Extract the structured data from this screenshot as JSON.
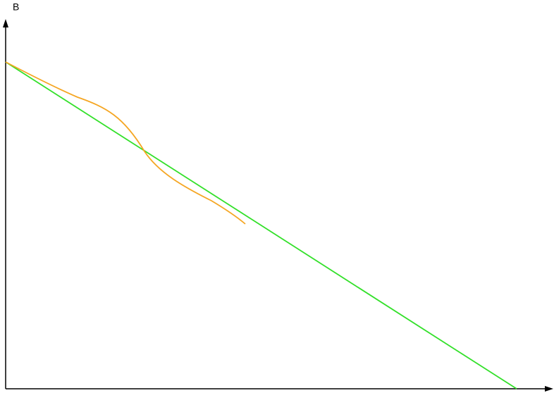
{
  "axes": {
    "y_label": "B"
  }
}
